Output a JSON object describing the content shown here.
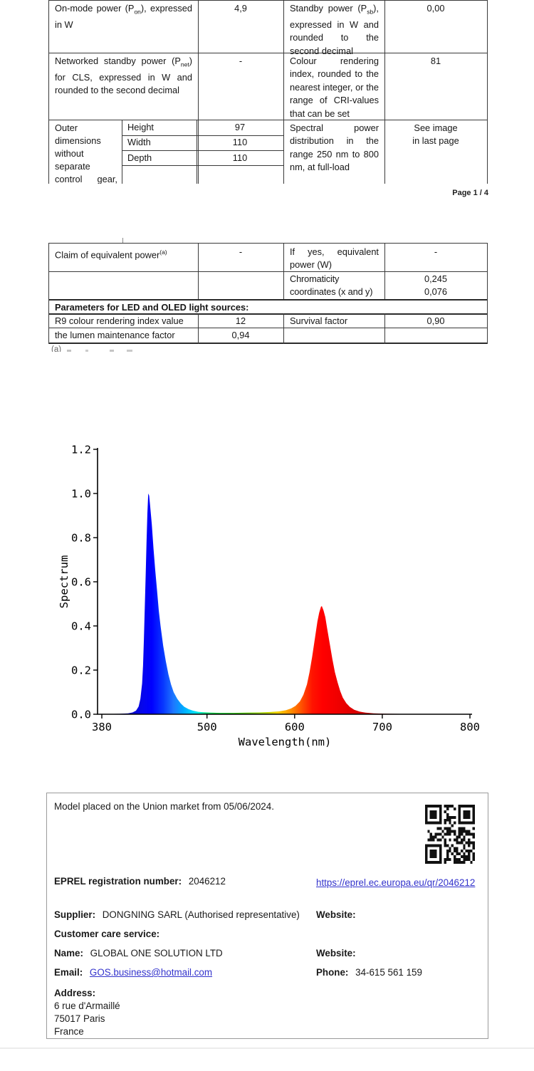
{
  "page": {
    "footer": "Page 1 / 4"
  },
  "spec_table": {
    "rows": [
      {
        "label_pre": "On-mode power (P",
        "label_sub": "on",
        "label_post": "), expressed in W",
        "value": "4,9",
        "label2_pre": "Standby power (P",
        "label2_sub": "sb",
        "label2_post": "), expressed in W and rounded to the second decimal",
        "value2": "0,00"
      },
      {
        "label_pre": "Networked standby power (P",
        "label_sub": "net",
        "label_post": ") for CLS, expressed in W and rounded to the second decimal",
        "value": "-",
        "label2_pre": "Colour rendering index, rounded to the nearest integer, or the range of CRI-values that can be set",
        "value2": "81"
      },
      {
        "label": "Outer dimensions without separate control gear, lighting control",
        "dims": [
          {
            "name": "Height",
            "value": "97"
          },
          {
            "name": "Width",
            "value": "110"
          },
          {
            "name": "Depth",
            "value": "110"
          }
        ],
        "label2": "Spectral power distribution in the range 250 nm to 800 nm, at full-load",
        "value2": "See image in last page"
      }
    ]
  },
  "params_table": {
    "row1": {
      "label": "Claim of equivalent power",
      "label_sup": "(a)",
      "value": "-",
      "label2": "If yes, equivalent power (W)",
      "value2": "-"
    },
    "row2": {
      "label2": "Chromaticity coordinates (x and y)",
      "value2_x": "0,245",
      "value2_y": "0,076"
    },
    "header": "Parameters for LED and OLED light sources:",
    "row4": {
      "label": "R9 colour rendering index value",
      "value": "12",
      "label2": "Survival factor",
      "value2": "0,90"
    },
    "row5": {
      "label": "the lumen maintenance factor",
      "value": "0,94"
    },
    "footnote": "(a)"
  },
  "chart_data": {
    "type": "area",
    "title": "",
    "xlabel": "Wavelength(nm)",
    "ylabel": "Spectrum",
    "xlim": [
      375,
      805
    ],
    "ylim": [
      0,
      1.2
    ],
    "x_ticks": [
      "380",
      "500",
      "600",
      "700",
      "800"
    ],
    "y_ticks": [
      "0.0",
      "0.2",
      "0.4",
      "0.6",
      "0.8",
      "1.0",
      "1.2"
    ],
    "grid": false,
    "legend": "none",
    "peaks": [
      {
        "wavelength_nm": 433,
        "value": 1.0,
        "color": "blue"
      },
      {
        "wavelength_nm": 631,
        "value": 0.49,
        "color": "red"
      }
    ],
    "points": [
      [
        380,
        0.001
      ],
      [
        400,
        0.002
      ],
      [
        410,
        0.004
      ],
      [
        415,
        0.008
      ],
      [
        419,
        0.016
      ],
      [
        422,
        0.035
      ],
      [
        424,
        0.07
      ],
      [
        426,
        0.14
      ],
      [
        427,
        0.22
      ],
      [
        428,
        0.34
      ],
      [
        429,
        0.48
      ],
      [
        430,
        0.63
      ],
      [
        431,
        0.78
      ],
      [
        432,
        0.91
      ],
      [
        433,
        1.0
      ],
      [
        434,
        0.99
      ],
      [
        435,
        0.95
      ],
      [
        437,
        0.86
      ],
      [
        439,
        0.75
      ],
      [
        441,
        0.65
      ],
      [
        443,
        0.56
      ],
      [
        445,
        0.47
      ],
      [
        447,
        0.4
      ],
      [
        450,
        0.31
      ],
      [
        453,
        0.24
      ],
      [
        456,
        0.18
      ],
      [
        459,
        0.135
      ],
      [
        462,
        0.1
      ],
      [
        466,
        0.07
      ],
      [
        470,
        0.049
      ],
      [
        474,
        0.034
      ],
      [
        479,
        0.023
      ],
      [
        484,
        0.016
      ],
      [
        490,
        0.011
      ],
      [
        496,
        0.009
      ],
      [
        504,
        0.007
      ],
      [
        515,
        0.006
      ],
      [
        530,
        0.006
      ],
      [
        545,
        0.007
      ],
      [
        560,
        0.008
      ],
      [
        572,
        0.01
      ],
      [
        582,
        0.013
      ],
      [
        590,
        0.018
      ],
      [
        596,
        0.026
      ],
      [
        601,
        0.038
      ],
      [
        606,
        0.058
      ],
      [
        610,
        0.088
      ],
      [
        614,
        0.135
      ],
      [
        617,
        0.19
      ],
      [
        620,
        0.26
      ],
      [
        623,
        0.34
      ],
      [
        626,
        0.42
      ],
      [
        628,
        0.46
      ],
      [
        630,
        0.487
      ],
      [
        631,
        0.49
      ],
      [
        633,
        0.47
      ],
      [
        635,
        0.44
      ],
      [
        637,
        0.39
      ],
      [
        640,
        0.32
      ],
      [
        643,
        0.25
      ],
      [
        646,
        0.19
      ],
      [
        649,
        0.145
      ],
      [
        652,
        0.105
      ],
      [
        655,
        0.075
      ],
      [
        659,
        0.05
      ],
      [
        663,
        0.033
      ],
      [
        668,
        0.02
      ],
      [
        674,
        0.012
      ],
      [
        681,
        0.007
      ],
      [
        690,
        0.004
      ],
      [
        702,
        0.0025
      ],
      [
        720,
        0.0015
      ],
      [
        760,
        0.001
      ],
      [
        800,
        0.001
      ]
    ],
    "colormap": [
      [
        380,
        "#0B0BA0"
      ],
      [
        415,
        "#0A0ACD"
      ],
      [
        428,
        "#0505F0"
      ],
      [
        437,
        "#0000FF"
      ],
      [
        450,
        "#0837FF"
      ],
      [
        462,
        "#1E78FF"
      ],
      [
        473,
        "#00AAFF"
      ],
      [
        483,
        "#00D4FF"
      ],
      [
        491,
        "#00EED8"
      ],
      [
        498,
        "#00E080"
      ],
      [
        508,
        "#00D23C"
      ],
      [
        525,
        "#14C814"
      ],
      [
        548,
        "#64C800"
      ],
      [
        568,
        "#B4D200"
      ],
      [
        580,
        "#F0D200"
      ],
      [
        590,
        "#FFAA00"
      ],
      [
        600,
        "#FF7800"
      ],
      [
        610,
        "#FF4600"
      ],
      [
        620,
        "#FF1400"
      ],
      [
        632,
        "#FF0000"
      ],
      [
        655,
        "#EB0000"
      ],
      [
        680,
        "#CD0000"
      ],
      [
        720,
        "#A00000"
      ],
      [
        800,
        "#6E0000"
      ]
    ]
  },
  "info_box": {
    "market_line": "Model placed on the Union market from 05/06/2024.",
    "eprel_label": "EPREL registration number:",
    "eprel_value": "2046212",
    "eprel_link": "https://eprel.ec.europa.eu/qr/2046212",
    "supplier_label": "Supplier:",
    "supplier_value": "DONGNING SARL (Authorised representative)",
    "website_label": "Website:",
    "customer_care_label": "Customer care service:",
    "name_label": "Name:",
    "name_value": "GLOBAL ONE SOLUTION LTD",
    "email_label": "Email:",
    "email_value": "GOS.business@hotmail.com",
    "phone_label": "Phone:",
    "phone_value": "34-615 561 159",
    "address_label": "Address:",
    "address_lines": [
      "6 rue d'Armaillé",
      "75017 Paris",
      "France"
    ],
    "colors": {
      "link": "#3333cc",
      "border": "#9b9b9b"
    }
  }
}
